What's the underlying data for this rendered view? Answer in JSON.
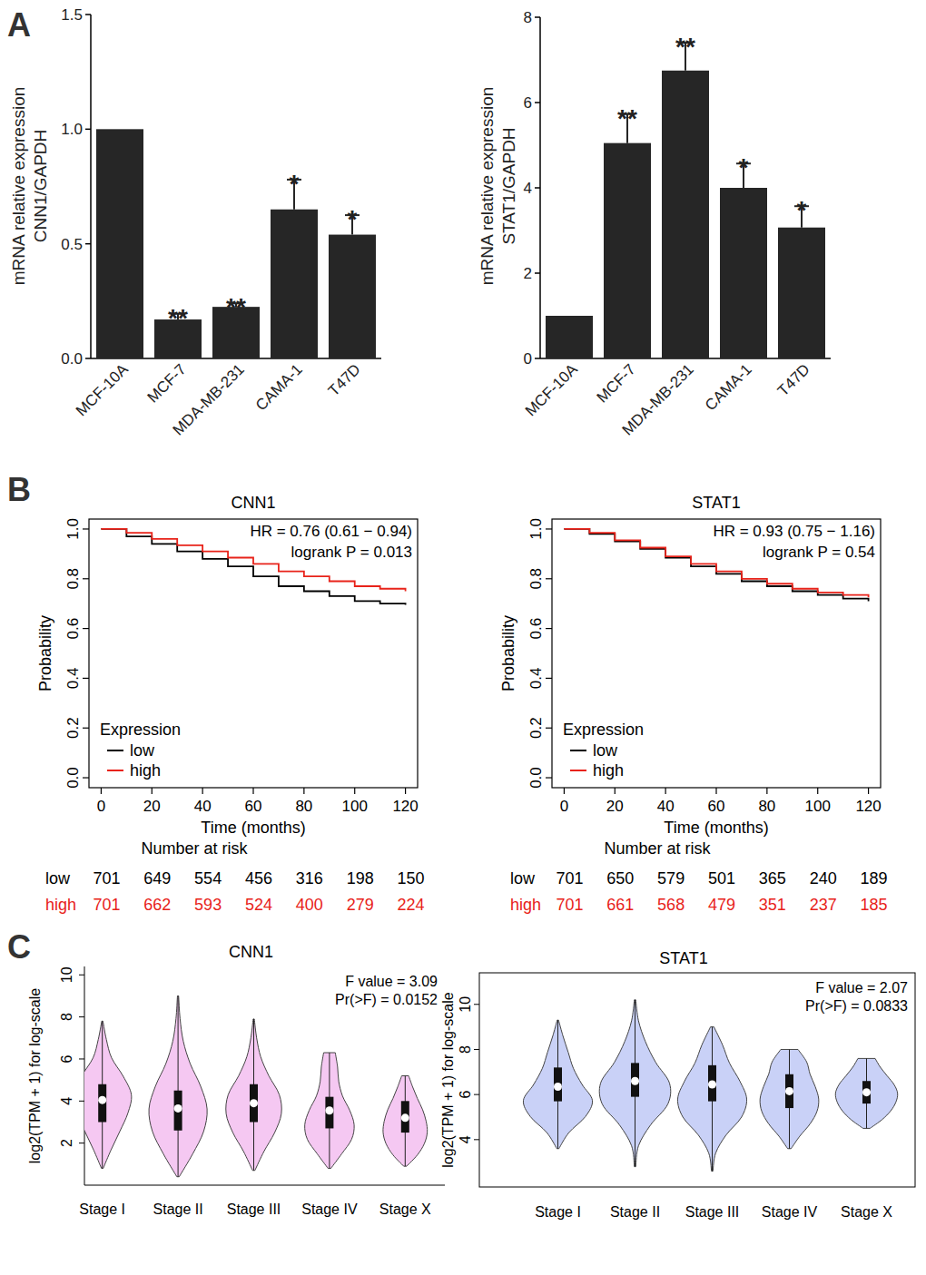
{
  "chart_data": [
    {
      "type": "bar",
      "panel": "A",
      "ylabel": [
        "mRNA relative expression",
        "CNN1/GAPDH"
      ],
      "categories": [
        "MCF-10A",
        "MCF-7",
        "MDA-MB-231",
        "CAMA-1",
        "T47D"
      ],
      "values": [
        1.0,
        0.17,
        0.225,
        0.65,
        0.54
      ],
      "errors": [
        0,
        0.025,
        0.015,
        0.13,
        0.085
      ],
      "significance": [
        null,
        "**",
        "**",
        "*",
        "*"
      ],
      "color": "#262626",
      "ylim": [
        0,
        1.5
      ],
      "yticks": [
        {
          "value": 0,
          "label": "0.0"
        },
        0.5,
        {
          "value": 1,
          "label": "1.0"
        },
        1.5
      ]
    },
    {
      "type": "bar",
      "ylabel": [
        "mRNA relative expression",
        "STAT1/GAPDH"
      ],
      "categories": [
        "MCF-10A",
        "MCF-7",
        "MDA-MB-231",
        "CAMA-1",
        "T47D"
      ],
      "values": [
        1.0,
        5.05,
        6.75,
        4.0,
        3.07
      ],
      "errors": [
        0,
        0.68,
        0.65,
        0.57,
        0.5
      ],
      "significance": [
        null,
        "**",
        "**",
        "*",
        "*"
      ],
      "color": "#262626",
      "ylim": [
        0,
        8
      ],
      "yticks": [
        0,
        2,
        4,
        6,
        8
      ]
    },
    {
      "type": "line",
      "line_style": "step",
      "panel": "B",
      "title": "CNN1",
      "annotations": [
        "HR = 0.76 (0.61 − 0.94)",
        "logrank P = 0.013"
      ],
      "xlabel": "Time (months)",
      "ylabel": "Probability",
      "legend": "bottom-left",
      "legend_title": "Expression",
      "xlim": [
        -4.8,
        124.8
      ],
      "ylim": [
        -0.04,
        1.04
      ],
      "xticks": [
        0,
        20,
        40,
        60,
        80,
        100,
        120
      ],
      "yticks": [
        {
          "value": 0,
          "label": "0.0"
        },
        0.2,
        0.4,
        0.6,
        0.8,
        {
          "value": 1,
          "label": "1.0"
        }
      ],
      "series": [
        {
          "name": "low",
          "color": "#000000",
          "x": [
            0,
            10,
            20,
            30,
            40,
            50,
            60,
            70,
            80,
            90,
            100,
            110,
            120
          ],
          "values": [
            1.0,
            0.97,
            0.94,
            0.91,
            0.88,
            0.85,
            0.81,
            0.77,
            0.75,
            0.73,
            0.71,
            0.7,
            0.695
          ]
        },
        {
          "name": "high",
          "color": "#e8231a",
          "x": [
            0,
            10,
            20,
            30,
            40,
            50,
            60,
            70,
            80,
            90,
            100,
            110,
            120
          ],
          "values": [
            1.0,
            0.985,
            0.96,
            0.935,
            0.91,
            0.885,
            0.86,
            0.83,
            0.81,
            0.79,
            0.77,
            0.76,
            0.75
          ]
        }
      ],
      "risk_table": {
        "title": "Number at risk",
        "times": [
          0,
          20,
          40,
          60,
          80,
          100,
          120
        ],
        "rows": [
          {
            "name": "low",
            "values": [
              701,
              649,
              554,
              456,
              316,
              198,
              150
            ]
          },
          {
            "name": "high",
            "values": [
              701,
              662,
              593,
              524,
              400,
              279,
              224
            ]
          }
        ]
      }
    },
    {
      "type": "line",
      "line_style": "step",
      "title": "STAT1",
      "annotations": [
        "HR = 0.93 (0.75 − 1.16)",
        "logrank P = 0.54"
      ],
      "xlabel": "Time (months)",
      "ylabel": "Probability",
      "legend": "bottom-left",
      "legend_title": "Expression",
      "xlim": [
        -4.8,
        124.8
      ],
      "ylim": [
        -0.04,
        1.04
      ],
      "xticks": [
        0,
        20,
        40,
        60,
        80,
        100,
        120
      ],
      "yticks": [
        {
          "value": 0,
          "label": "0.0"
        },
        0.2,
        0.4,
        0.6,
        0.8,
        {
          "value": 1,
          "label": "1.0"
        }
      ],
      "series": [
        {
          "name": "low",
          "color": "#000000",
          "x": [
            0,
            10,
            20,
            30,
            40,
            50,
            60,
            70,
            80,
            90,
            100,
            110,
            120
          ],
          "values": [
            1.0,
            0.98,
            0.95,
            0.92,
            0.885,
            0.85,
            0.82,
            0.79,
            0.77,
            0.75,
            0.735,
            0.72,
            0.71
          ]
        },
        {
          "name": "high",
          "color": "#e8231a",
          "x": [
            0,
            10,
            20,
            30,
            40,
            50,
            60,
            70,
            80,
            90,
            100,
            110,
            120
          ],
          "values": [
            1.0,
            0.985,
            0.955,
            0.925,
            0.89,
            0.86,
            0.83,
            0.8,
            0.78,
            0.76,
            0.745,
            0.735,
            0.725
          ]
        }
      ],
      "risk_table": {
        "title": "Number at risk",
        "times": [
          0,
          20,
          40,
          60,
          80,
          100,
          120
        ],
        "rows": [
          {
            "name": "low",
            "values": [
              701,
              650,
              579,
              501,
              365,
              240,
              189
            ]
          },
          {
            "name": "high",
            "values": [
              701,
              661,
              568,
              479,
              351,
              237,
              185
            ]
          }
        ]
      }
    },
    {
      "type": "violin",
      "panel": "C",
      "title": "CNN1",
      "annotations": [
        "F value = 3.09",
        "Pr(>F) = 0.0152"
      ],
      "ylabel": "log2(TPM + 1) for log-scale",
      "categories": [
        "Stage I",
        "Stage II",
        "Stage III",
        "Stage IV",
        "Stage X"
      ],
      "color": "#f5c8f2",
      "ylim": [
        0,
        10.4
      ],
      "yticks": [
        2,
        4,
        6,
        8,
        10
      ],
      "min": [
        0.8,
        0.4,
        0.7,
        0.8,
        0.9
      ],
      "q1": [
        3.0,
        2.6,
        3.0,
        2.7,
        2.5
      ],
      "median": [
        4.05,
        3.65,
        3.9,
        3.55,
        3.2
      ],
      "q3": [
        4.8,
        4.5,
        4.8,
        4.2,
        4.0
      ],
      "max": [
        7.8,
        9.0,
        7.9,
        6.3,
        5.2
      ],
      "density": [
        [
          0.03,
          0.3,
          0.6,
          0.88,
          1.0,
          0.72,
          0.32,
          0.14,
          0.02
        ],
        [
          0.04,
          0.5,
          0.88,
          1.0,
          0.78,
          0.42,
          0.18,
          0.07,
          0.02
        ],
        [
          0.04,
          0.35,
          0.72,
          0.95,
          0.88,
          0.52,
          0.24,
          0.1,
          0.02
        ],
        [
          0.05,
          0.42,
          0.76,
          0.85,
          0.7,
          0.45,
          0.32,
          0.28,
          0.2
        ],
        [
          0.05,
          0.42,
          0.66,
          0.76,
          0.72,
          0.6,
          0.42,
          0.26,
          0.12
        ]
      ]
    },
    {
      "type": "violin",
      "title": "STAT1",
      "annotations": [
        "F value = 2.07",
        "Pr(>F) = 0.0833"
      ],
      "ylabel": "log2(TPM + 1) for log-scale",
      "categories": [
        "Stage I",
        "Stage II",
        "Stage III",
        "Stage IV",
        "Stage X"
      ],
      "color": "#c9d1f7",
      "ylim": [
        1.9,
        11.4
      ],
      "yticks": [
        4,
        6,
        8,
        10
      ],
      "min": [
        3.6,
        2.8,
        2.6,
        3.6,
        4.5
      ],
      "q1": [
        5.7,
        5.9,
        5.7,
        5.4,
        5.6
      ],
      "median": [
        6.35,
        6.6,
        6.45,
        6.15,
        6.1
      ],
      "q3": [
        7.2,
        7.4,
        7.3,
        6.9,
        6.6
      ],
      "max": [
        9.3,
        10.2,
        9.0,
        8.0,
        7.6
      ],
      "density": [
        [
          0.03,
          0.32,
          0.8,
          1.0,
          0.7,
          0.45,
          0.3,
          0.15,
          0.02
        ],
        [
          0.02,
          0.1,
          0.45,
          0.95,
          1.0,
          0.6,
          0.3,
          0.1,
          0.02
        ],
        [
          0.02,
          0.1,
          0.4,
          0.85,
          1.0,
          0.8,
          0.5,
          0.3,
          0.05
        ],
        [
          0.05,
          0.3,
          0.6,
          0.8,
          0.85,
          0.75,
          0.6,
          0.5,
          0.25
        ],
        [
          0.1,
          0.45,
          0.7,
          0.85,
          0.9,
          0.8,
          0.6,
          0.4,
          0.25
        ]
      ]
    }
  ]
}
